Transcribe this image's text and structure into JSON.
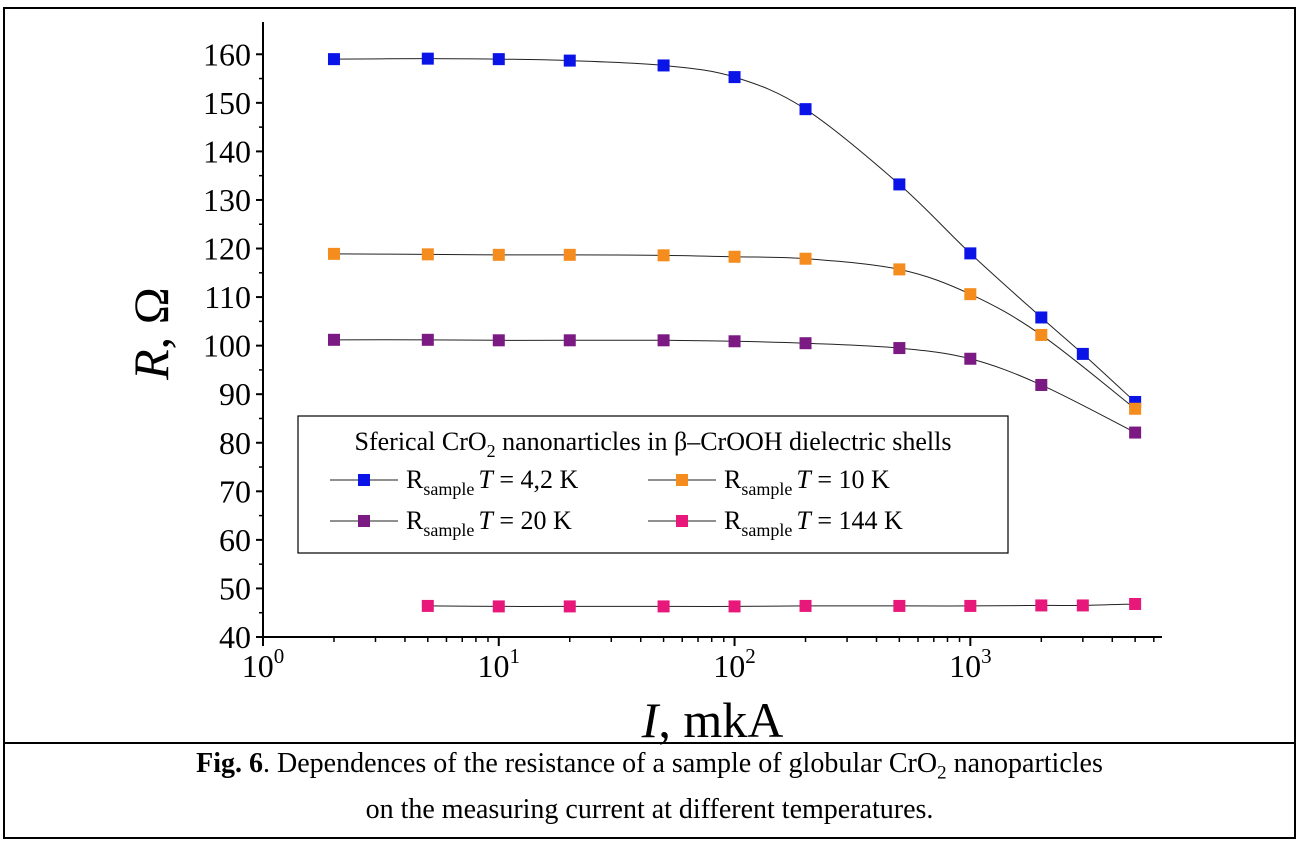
{
  "chart_data": {
    "type": "scatter",
    "xscale": "log",
    "xlim": [
      1,
      6500
    ],
    "ylim": [
      40,
      165
    ],
    "xticks": [
      1,
      10,
      100,
      1000
    ],
    "xtick_labels": [
      [
        "10",
        "0"
      ],
      [
        "10",
        "1"
      ],
      [
        "10",
        "2"
      ],
      [
        "10",
        "3"
      ]
    ],
    "yticks": [
      40,
      50,
      60,
      70,
      80,
      90,
      100,
      110,
      120,
      130,
      140,
      150,
      160
    ],
    "ytick_labels": [
      "40",
      "50",
      "60",
      "70",
      "80",
      "90",
      "100",
      "110",
      "120",
      "130",
      "140",
      "150",
      "160"
    ],
    "xlabel": {
      "var": "I",
      "rest": ", mkA"
    },
    "ylabel": {
      "var": "R",
      "rest": ", Ω"
    },
    "legend": {
      "title_parts": [
        "Sferical CrO",
        "2",
        " nanonarticles in β–CrOOH dielectric shells"
      ],
      "placement": "lower-left inside plot"
    },
    "series": [
      {
        "label_main": "R",
        "label_sub": "sample",
        "label_var": "T",
        "label_rest": " = 4,2 K",
        "color": "#0a14e6",
        "x": [
          2,
          5,
          10,
          20,
          50,
          100,
          200,
          500,
          1000,
          2000,
          3000,
          5000
        ],
        "y": [
          159.0,
          159.1,
          159.0,
          158.7,
          157.7,
          155.3,
          148.7,
          133.2,
          119.0,
          105.8,
          98.3,
          88.4
        ]
      },
      {
        "label_main": "R",
        "label_sub": "sample",
        "label_var": "T",
        "label_rest": " = 10 K",
        "color": "#f58c1e",
        "x": [
          2,
          5,
          10,
          20,
          50,
          100,
          200,
          500,
          1000,
          2000,
          5000
        ],
        "y": [
          118.9,
          118.8,
          118.7,
          118.7,
          118.6,
          118.3,
          117.9,
          115.7,
          110.6,
          102.2,
          87.0
        ]
      },
      {
        "label_main": "R",
        "label_sub": "sample",
        "label_var": "T",
        "label_rest": " = 20 K",
        "color": "#7a1a82",
        "x": [
          2,
          5,
          10,
          20,
          50,
          100,
          200,
          500,
          1000,
          2000,
          5000
        ],
        "y": [
          101.2,
          101.2,
          101.1,
          101.1,
          101.1,
          100.9,
          100.5,
          99.5,
          97.3,
          91.9,
          82.1
        ]
      },
      {
        "label_main": "R",
        "label_sub": "sample",
        "label_var": "T",
        "label_rest": " = 144 K",
        "color": "#e8187a",
        "x": [
          5,
          10,
          20,
          50,
          100,
          200,
          500,
          1000,
          2000,
          3000,
          5000
        ],
        "y": [
          46.4,
          46.3,
          46.3,
          46.3,
          46.3,
          46.4,
          46.4,
          46.4,
          46.5,
          46.5,
          46.8
        ]
      }
    ]
  },
  "caption": {
    "fig_label": "Fig. 6",
    "text_before": ". Dependences of the resistance of a sample of globular CrO",
    "sub": "2",
    "text_after": " nanoparticles",
    "line2": "on the measuring current at different temperatures."
  }
}
